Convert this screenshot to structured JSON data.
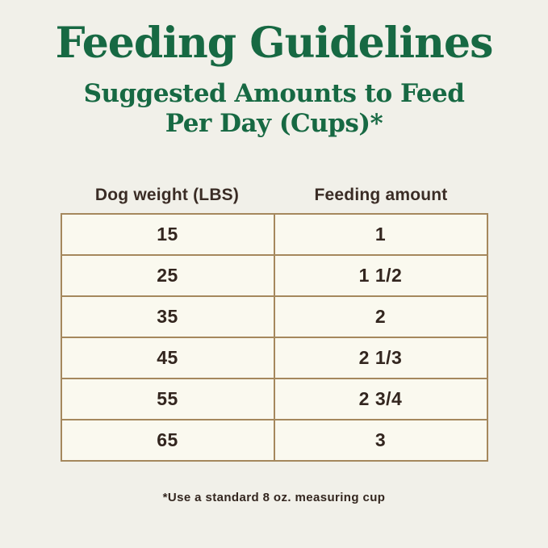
{
  "header": {
    "title": "Feeding Guidelines",
    "subtitle_line1": "Suggested Amounts to Feed",
    "subtitle_line2": "Per Day (Cups)*"
  },
  "chart_data": {
    "type": "table",
    "title": "Feeding Guidelines",
    "subtitle": "Suggested Amounts to Feed Per Day (Cups)*",
    "columns": [
      "Dog weight (LBS)",
      "Feeding amount"
    ],
    "rows": [
      [
        "15",
        "1"
      ],
      [
        "25",
        "1 1/2"
      ],
      [
        "35",
        "2"
      ],
      [
        "45",
        "2 1/3"
      ],
      [
        "55",
        "2 3/4"
      ],
      [
        "65",
        "3"
      ]
    ],
    "footnote": "*Use a standard 8 oz. measuring cup",
    "layout_hints": {
      "columns_equal_width": true,
      "header_outside_border": true,
      "grid_on": true
    }
  },
  "footnote": {
    "text": "*Use a standard 8 oz. measuring cup"
  },
  "colors": {
    "background": "#F1F0E9",
    "cell_background": "#FAF9EF",
    "title_green": "#176943",
    "table_border_tan": "#A5885D",
    "text_dark_brown": "#33261F"
  }
}
